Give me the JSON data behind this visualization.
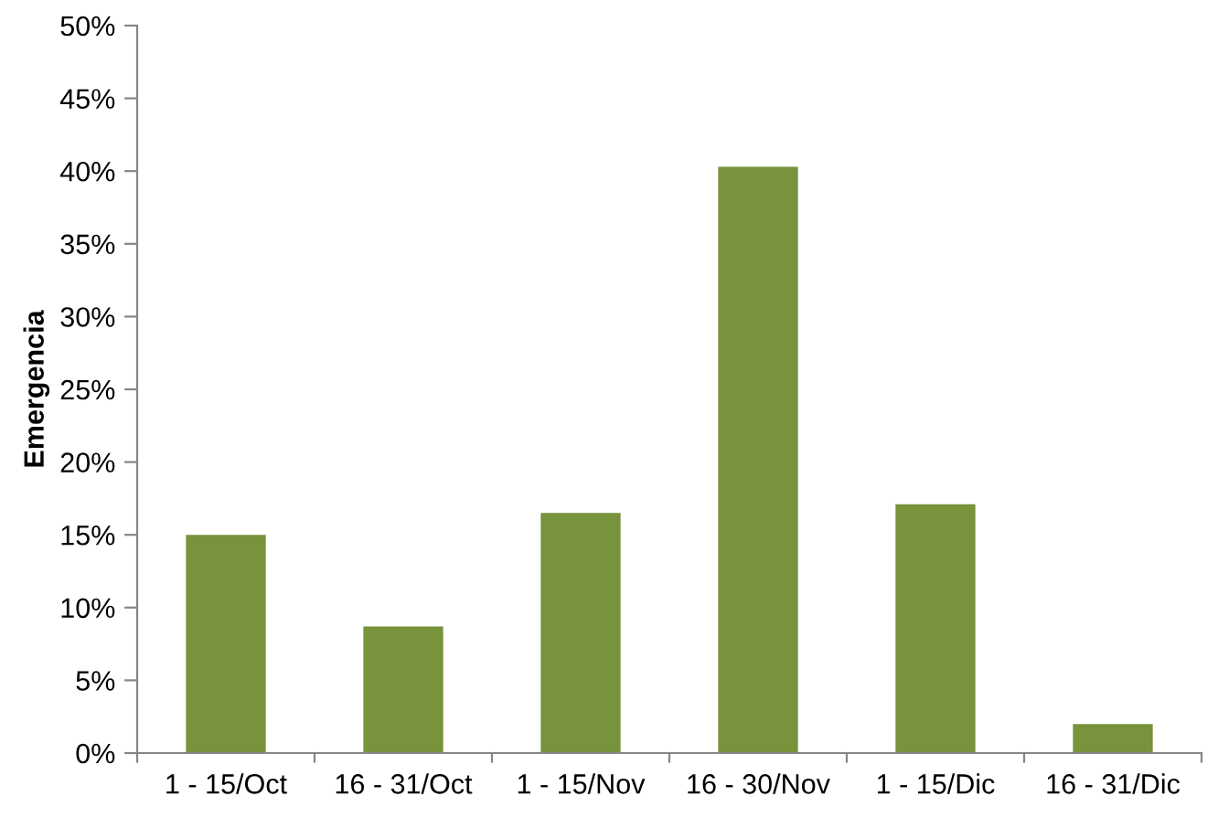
{
  "chart_data": {
    "type": "bar",
    "ylabel": "Emergencia",
    "categories": [
      "1 - 15/Oct",
      "16 - 31/Oct",
      "1 - 15/Nov",
      "16 - 30/Nov",
      "1 - 15/Dic",
      "16 - 31/Dic"
    ],
    "series": [
      {
        "color": "#77933c",
        "values": [
          15.0,
          8.7,
          16.5,
          40.3,
          17.1,
          2.0
        ]
      }
    ],
    "ylim": [
      0,
      50
    ],
    "yticks": [
      {
        "value": 0,
        "label": "0%"
      },
      {
        "value": 5,
        "label": "5%"
      },
      {
        "value": 10,
        "label": "10%"
      },
      {
        "value": 15,
        "label": "15%"
      },
      {
        "value": 20,
        "label": "20%"
      },
      {
        "value": 25,
        "label": "25%"
      },
      {
        "value": 30,
        "label": "30%"
      },
      {
        "value": 35,
        "label": "35%"
      },
      {
        "value": 40,
        "label": "40%"
      },
      {
        "value": 45,
        "label": "45%"
      },
      {
        "value": 50,
        "label": "50%"
      }
    ],
    "grid": false
  }
}
